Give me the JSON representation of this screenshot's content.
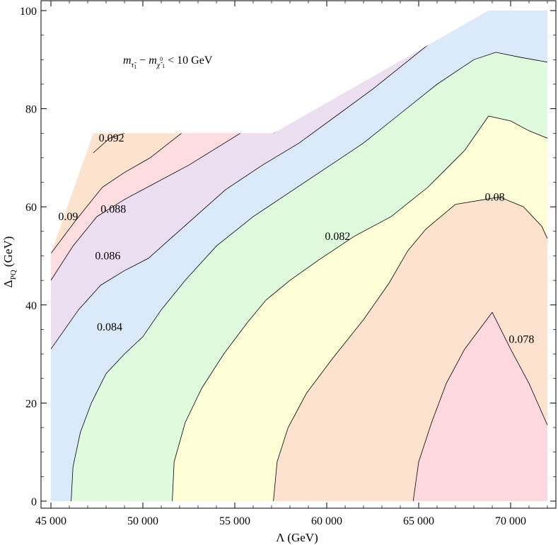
{
  "chart_data": {
    "type": "contour",
    "xlabel": "Λ (GeV)",
    "ylabel_main": "Δ",
    "ylabel_sub": "PQ",
    "ylabel_unit": " (GeV)",
    "xlim": [
      44500,
      72500
    ],
    "ylim": [
      -1,
      101
    ],
    "x_ticks": [
      45000,
      50000,
      55000,
      60000,
      65000,
      70000
    ],
    "x_tick_labels": [
      "45 000",
      "50 000",
      "55 000",
      "60 000",
      "65 000",
      "70 000"
    ],
    "y_ticks": [
      0,
      20,
      40,
      60,
      80,
      100
    ],
    "y_tick_labels": [
      "0",
      "20",
      "40",
      "60",
      "80",
      "100"
    ],
    "annotation": {
      "m": "m",
      "sub_stau": "τ̃",
      "sub_stau_index": "1",
      "minus": " − ",
      "sub_chi": "χ̃",
      "sup_chi": "0",
      "sub_chi_index": "1",
      "condition": " < 10 GeV"
    },
    "region_boundary": [
      [
        45000,
        0
      ],
      [
        72000,
        0
      ],
      [
        72000,
        100
      ],
      [
        68800,
        100
      ],
      [
        57100,
        75
      ],
      [
        47300,
        75
      ],
      [
        45000,
        50.5
      ]
    ],
    "contour_levels": [
      {
        "level": 0.078,
        "label": "0.078",
        "label_at": [
          69900,
          33
        ],
        "line": [
          [
            69000,
            38.5
          ],
          [
            70000,
            31
          ],
          [
            71000,
            24
          ],
          [
            72000,
            15.5
          ]
        ]
      },
      {
        "level": 0.078,
        "label": "",
        "line": [
          [
            64700,
            0
          ],
          [
            65000,
            8
          ],
          [
            65700,
            16
          ],
          [
            66500,
            24
          ],
          [
            67500,
            31
          ],
          [
            69000,
            38.5
          ]
        ]
      },
      {
        "level": 0.08,
        "label": "0.08",
        "label_at": [
          68600,
          62
        ],
        "line": [
          [
            57100,
            0
          ],
          [
            57300,
            8
          ],
          [
            57900,
            15
          ],
          [
            58900,
            22
          ],
          [
            60300,
            29
          ],
          [
            62000,
            37
          ],
          [
            63400,
            44.5
          ],
          [
            64400,
            51
          ],
          [
            65400,
            55.5
          ],
          [
            67000,
            60.5
          ],
          [
            69400,
            62
          ],
          [
            70700,
            60
          ],
          [
            71700,
            56
          ],
          [
            72000,
            53.5
          ]
        ]
      },
      {
        "level": 0.082,
        "label": "0.082",
        "label_at": [
          59900,
          54
        ],
        "line": [
          [
            51600,
            0
          ],
          [
            51700,
            8
          ],
          [
            52300,
            16
          ],
          [
            53200,
            23
          ],
          [
            54400,
            30
          ],
          [
            55700,
            36.5
          ],
          [
            56700,
            41
          ],
          [
            58000,
            45
          ],
          [
            59500,
            49
          ],
          [
            61500,
            54
          ],
          [
            63500,
            58
          ],
          [
            65500,
            64
          ],
          [
            67500,
            71.5
          ],
          [
            68800,
            78.5
          ],
          [
            70000,
            77.5
          ],
          [
            71000,
            75.5
          ],
          [
            72000,
            74
          ]
        ]
      },
      {
        "level": 0.084,
        "label": "0.084",
        "label_at": [
          47500,
          35.5
        ],
        "line": [
          [
            46100,
            0
          ],
          [
            46200,
            7
          ],
          [
            46600,
            14
          ],
          [
            47200,
            20
          ],
          [
            48000,
            26
          ],
          [
            49000,
            30
          ],
          [
            50000,
            33.5
          ],
          [
            51000,
            39
          ],
          [
            52300,
            45
          ],
          [
            54000,
            52
          ],
          [
            56000,
            58
          ],
          [
            58000,
            63
          ],
          [
            60000,
            68
          ],
          [
            62000,
            73
          ],
          [
            64000,
            79
          ],
          [
            66000,
            85
          ],
          [
            68000,
            90
          ],
          [
            69200,
            91.5
          ],
          [
            70500,
            90.5
          ],
          [
            72000,
            89.5
          ]
        ]
      },
      {
        "level": 0.086,
        "label": "0.086",
        "label_at": [
          47400,
          50
        ],
        "line": [
          [
            45000,
            31
          ],
          [
            46500,
            39
          ],
          [
            47700,
            44
          ],
          [
            49000,
            47
          ],
          [
            50300,
            49.5
          ],
          [
            51500,
            53.5
          ],
          [
            53000,
            58.5
          ],
          [
            54500,
            63.5
          ],
          [
            56500,
            68.5
          ],
          [
            58500,
            73
          ],
          [
            60500,
            78.5
          ],
          [
            62500,
            84
          ],
          [
            64500,
            90
          ],
          [
            66500,
            96
          ],
          [
            67800,
            100
          ]
        ]
      },
      {
        "level": 0.088,
        "label": "0.088",
        "label_at": [
          47700,
          59.5
        ],
        "line": [
          [
            45000,
            45
          ],
          [
            46200,
            52
          ],
          [
            47500,
            58
          ],
          [
            49000,
            61.5
          ],
          [
            50500,
            64.5
          ],
          [
            52500,
            68.5
          ],
          [
            55300,
            75
          ]
        ]
      },
      {
        "level": 0.088,
        "label": "",
        "line": [
          [
            57100,
            75
          ],
          [
            59000,
            80.5
          ],
          [
            61000,
            86.5
          ],
          [
            63000,
            93
          ],
          [
            65000,
            100
          ]
        ]
      },
      {
        "level": 0.09,
        "label": "0.09",
        "label_at": [
          45400,
          58
        ],
        "line": [
          [
            45000,
            50.5
          ],
          [
            46300,
            57
          ],
          [
            47800,
            64
          ],
          [
            49000,
            67
          ],
          [
            50400,
            70
          ],
          [
            52100,
            75
          ]
        ]
      },
      {
        "level": 0.092,
        "label": "0.092",
        "label_at": [
          47600,
          74
        ],
        "line": [
          [
            47300,
            71
          ],
          [
            48200,
            74
          ],
          [
            49000,
            75
          ]
        ]
      }
    ],
    "bands": [
      {
        "name": "below_0.078",
        "color": "#fdd8de"
      },
      {
        "name": "0.078_0.080",
        "color": "#fde3cf"
      },
      {
        "name": "0.080_0.082",
        "color": "#fefed6"
      },
      {
        "name": "0.082_0.084",
        "color": "#dffadd"
      },
      {
        "name": "0.084_0.086",
        "color": "#dbeafb"
      },
      {
        "name": "0.086_0.088",
        "color": "#ecdff1"
      },
      {
        "name": "0.088_0.090",
        "color": "#fddde0"
      },
      {
        "name": "0.090_0.092",
        "color": "#fde3cd"
      }
    ]
  }
}
